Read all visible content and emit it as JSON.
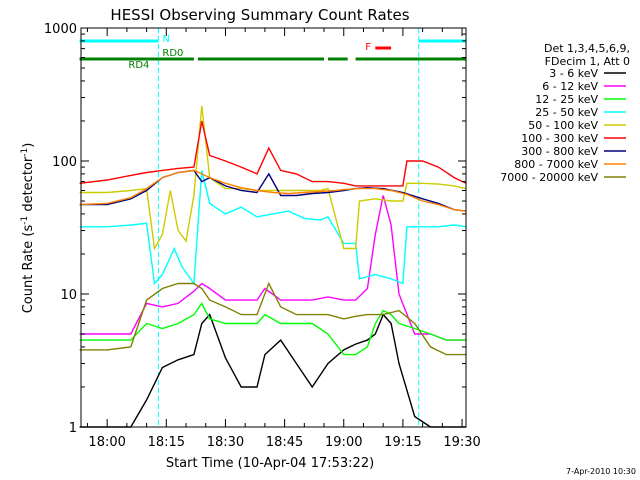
{
  "chart_data": {
    "type": "line",
    "title": "HESSI Observing Summary Count Rates",
    "xlabel": "Start Time (10-Apr-04 17:53:22)",
    "ylabel_main": "Count Rate (s",
    "ylabel_sup1": "-1",
    "ylabel_mid": " detector",
    "ylabel_sup2": "-1",
    "ylabel_end": ")",
    "footer": "7-Apr-2010 10:30",
    "xlim": [
      "17:53:22",
      "19:31:00"
    ],
    "ylim": [
      1,
      1000
    ],
    "yscale": "log",
    "x_ticks": [
      "18:00",
      "18:15",
      "18:30",
      "18:45",
      "19:00",
      "19:15",
      "19:30"
    ],
    "y_ticks": [
      {
        "value": 1,
        "label": "1"
      },
      {
        "value": 10,
        "label": "10"
      },
      {
        "value": 100,
        "label": "100"
      },
      {
        "value": 1000,
        "label": "1000"
      }
    ],
    "legend": {
      "placement": "right",
      "header": [
        "Det 1,3,4,5,6,9,",
        "FDecim 1, Att 0"
      ]
    },
    "series": [
      {
        "name": "3 - 6 keV",
        "color": "#000000",
        "x": [
          "17:53",
          "18:00",
          "18:06",
          "18:10",
          "18:14",
          "18:18",
          "18:22",
          "18:24",
          "18:26",
          "18:30",
          "18:34",
          "18:38",
          "18:40",
          "18:44",
          "18:48",
          "18:52",
          "18:56",
          "19:00",
          "19:03",
          "19:06",
          "19:08",
          "19:10",
          "19:12",
          "19:14",
          "19:18",
          "19:22",
          "19:26",
          "19:31"
        ],
        "y": [
          1,
          1,
          1,
          1.6,
          2.8,
          3.2,
          3.5,
          6,
          7,
          3.3,
          2,
          2,
          3.5,
          4.5,
          3,
          2,
          3,
          3.8,
          4.2,
          4.5,
          5,
          7,
          6,
          3,
          1.2,
          1,
          1,
          1
        ]
      },
      {
        "name": "6 - 12 keV",
        "color": "#ff00ff",
        "x": [
          "17:53",
          "18:00",
          "18:06",
          "18:10",
          "18:14",
          "18:18",
          "18:22",
          "18:24",
          "18:26",
          "18:30",
          "18:34",
          "18:38",
          "18:40",
          "18:44",
          "18:48",
          "18:52",
          "18:56",
          "19:00",
          "19:03",
          "19:06",
          "19:08",
          "19:10",
          "19:12",
          "19:14",
          "19:18",
          "19:22",
          "19:26",
          "19:31"
        ],
        "y": [
          5,
          5,
          5,
          8.5,
          8,
          8.5,
          10.5,
          12,
          11,
          9,
          9,
          9,
          11,
          9,
          9,
          9,
          9.5,
          9,
          9,
          11,
          28,
          55,
          33,
          10,
          5,
          5,
          4.5,
          4.5
        ]
      },
      {
        "name": "12 - 25 keV",
        "color": "#00ff00",
        "x": [
          "17:53",
          "18:00",
          "18:06",
          "18:10",
          "18:14",
          "18:18",
          "18:22",
          "18:24",
          "18:26",
          "18:30",
          "18:34",
          "18:38",
          "18:40",
          "18:44",
          "18:48",
          "18:52",
          "18:56",
          "19:00",
          "19:03",
          "19:06",
          "19:08",
          "19:10",
          "19:12",
          "19:14",
          "19:18",
          "19:22",
          "19:26",
          "19:31"
        ],
        "y": [
          4.5,
          4.5,
          4.5,
          6,
          5.5,
          6,
          7,
          8.5,
          6.5,
          6,
          6,
          6,
          7,
          6,
          6,
          6,
          5,
          3.5,
          3.5,
          4,
          6,
          7.5,
          7,
          6,
          5.5,
          5,
          4.5,
          4.5
        ]
      },
      {
        "name": "25 - 50 keV",
        "color": "#00ffff",
        "x": [
          "17:53",
          "18:00",
          "18:06",
          "18:10",
          "18:12",
          "18:14",
          "18:17",
          "18:19",
          "18:22",
          "18:24",
          "18:26",
          "18:30",
          "18:34",
          "18:38",
          "18:42",
          "18:46",
          "18:50",
          "18:54",
          "18:56",
          "19:00",
          "19:03",
          "19:04",
          "19:08",
          "19:12",
          "19:15",
          "19:16",
          "19:20",
          "19:24",
          "19:28",
          "19:31"
        ],
        "y": [
          32,
          32,
          33,
          34,
          12,
          14,
          22,
          16,
          12,
          85,
          48,
          40,
          45,
          38,
          40,
          42,
          37,
          36,
          38,
          24,
          24,
          13,
          14,
          13,
          12,
          32,
          32,
          32,
          33,
          32
        ]
      },
      {
        "name": "50 - 100 keV",
        "color": "#cccc00",
        "x": [
          "17:53",
          "18:00",
          "18:06",
          "18:10",
          "18:12",
          "18:14",
          "18:16",
          "18:18",
          "18:20",
          "18:22",
          "18:24",
          "18:26",
          "18:30",
          "18:34",
          "18:38",
          "18:42",
          "18:46",
          "18:50",
          "18:54",
          "18:56",
          "19:00",
          "19:03",
          "19:04",
          "19:08",
          "19:12",
          "19:15",
          "19:16",
          "19:20",
          "19:24",
          "19:28",
          "19:31"
        ],
        "y": [
          58,
          58,
          60,
          62,
          22,
          28,
          60,
          30,
          25,
          55,
          260,
          75,
          62,
          62,
          60,
          60,
          60,
          60,
          60,
          62,
          22,
          22,
          50,
          52,
          50,
          50,
          68,
          68,
          67,
          65,
          62
        ]
      },
      {
        "name": "100 - 300 keV",
        "color": "#ff0000",
        "x": [
          "17:53",
          "18:00",
          "18:06",
          "18:10",
          "18:14",
          "18:18",
          "18:22",
          "18:24",
          "18:26",
          "18:30",
          "18:34",
          "18:38",
          "18:41",
          "18:44",
          "18:48",
          "18:52",
          "18:56",
          "19:00",
          "19:03",
          "19:04",
          "19:08",
          "19:12",
          "19:15",
          "19:16",
          "19:20",
          "19:24",
          "19:28",
          "19:31"
        ],
        "y": [
          68,
          72,
          78,
          82,
          85,
          88,
          90,
          200,
          110,
          100,
          90,
          80,
          125,
          85,
          80,
          70,
          70,
          68,
          65,
          65,
          65,
          65,
          65,
          100,
          100,
          90,
          75,
          68
        ]
      },
      {
        "name": "300 - 800 keV",
        "color": "#000080",
        "x": [
          "17:53",
          "18:00",
          "18:06",
          "18:10",
          "18:14",
          "18:18",
          "18:22",
          "18:24",
          "18:26",
          "18:30",
          "18:34",
          "18:38",
          "18:41",
          "18:44",
          "18:48",
          "18:52",
          "18:56",
          "19:00",
          "19:03",
          "19:06",
          "19:10",
          "19:15",
          "19:20",
          "19:24",
          "19:28",
          "19:31"
        ],
        "y": [
          47,
          47,
          52,
          60,
          75,
          82,
          85,
          70,
          75,
          65,
          60,
          58,
          80,
          55,
          55,
          57,
          58,
          60,
          62,
          63,
          62,
          58,
          52,
          48,
          43,
          42
        ]
      },
      {
        "name": "800 - 7000 keV",
        "color": "#ff8000",
        "x": [
          "17:53",
          "18:00",
          "18:06",
          "18:10",
          "18:14",
          "18:18",
          "18:22",
          "18:24",
          "18:26",
          "18:30",
          "18:34",
          "18:38",
          "18:42",
          "18:46",
          "18:50",
          "18:54",
          "18:58",
          "19:00",
          "19:04",
          "19:08",
          "19:12",
          "19:16",
          "19:20",
          "19:24",
          "19:28",
          "19:31"
        ],
        "y": [
          47,
          48,
          53,
          62,
          75,
          82,
          85,
          80,
          75,
          68,
          63,
          60,
          58,
          57,
          58,
          59,
          60,
          61,
          62,
          62,
          60,
          56,
          50,
          47,
          43,
          42
        ]
      },
      {
        "name": "7000 - 20000 keV",
        "color": "#808000",
        "x": [
          "17:53",
          "18:00",
          "18:06",
          "18:10",
          "18:14",
          "18:18",
          "18:22",
          "18:24",
          "18:26",
          "18:30",
          "18:34",
          "18:38",
          "18:41",
          "18:44",
          "18:48",
          "18:52",
          "18:56",
          "19:00",
          "19:03",
          "19:06",
          "19:10",
          "19:14",
          "19:18",
          "19:22",
          "19:26",
          "19:31"
        ],
        "y": [
          3.8,
          3.8,
          4,
          9,
          11,
          12,
          12,
          11,
          9,
          8,
          7,
          7,
          12,
          8,
          7,
          7,
          7,
          6.5,
          6.8,
          7,
          7,
          7.5,
          6,
          4,
          3.5,
          3.5
        ]
      }
    ],
    "status_bars": [
      {
        "label": "N",
        "color": "#00ffff",
        "segments": [
          [
            "17:53",
            "18:13"
          ],
          [
            "19:19",
            "19:31"
          ]
        ]
      },
      {
        "label": "F",
        "color": "#ff0000",
        "segments": [
          [
            "19:08",
            "19:12"
          ]
        ]
      },
      {
        "label": "RD0",
        "color": "#008000",
        "segments": [
          [
            "18:13",
            "18:22"
          ],
          [
            "18:23",
            "18:55"
          ],
          [
            "18:56",
            "19:01"
          ],
          [
            "19:03",
            "19:31"
          ]
        ]
      },
      {
        "label": "RD4",
        "color": "#008000",
        "segments": [
          [
            "17:53",
            "18:13"
          ]
        ]
      }
    ],
    "grid": false
  }
}
